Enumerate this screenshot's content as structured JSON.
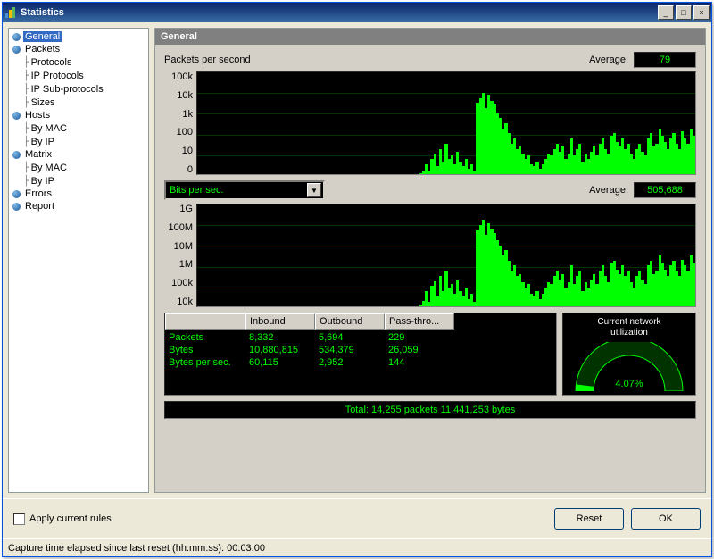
{
  "window": {
    "title": "Statistics"
  },
  "tree": [
    {
      "label": "General",
      "indent": 0,
      "bullet": true,
      "selected": true
    },
    {
      "label": "Packets",
      "indent": 0,
      "bullet": true
    },
    {
      "label": "Protocols",
      "indent": 1,
      "bullet": false
    },
    {
      "label": "IP Protocols",
      "indent": 1,
      "bullet": false
    },
    {
      "label": "IP Sub-protocols",
      "indent": 1,
      "bullet": false
    },
    {
      "label": "Sizes",
      "indent": 1,
      "bullet": false
    },
    {
      "label": "Hosts",
      "indent": 0,
      "bullet": true
    },
    {
      "label": "By MAC",
      "indent": 1,
      "bullet": false
    },
    {
      "label": "By IP",
      "indent": 1,
      "bullet": false
    },
    {
      "label": "Matrix",
      "indent": 0,
      "bullet": true
    },
    {
      "label": "By MAC",
      "indent": 1,
      "bullet": false
    },
    {
      "label": "By IP",
      "indent": 1,
      "bullet": false
    },
    {
      "label": "Errors",
      "indent": 0,
      "bullet": true
    },
    {
      "label": "Report",
      "indent": 0,
      "bullet": true
    }
  ],
  "panel": {
    "header": "General"
  },
  "chart1": {
    "title": "Packets per second",
    "avg_label": "Average:",
    "avg_value": "79",
    "yticks": [
      "100k",
      "10k",
      "1k",
      "100",
      "10",
      "0"
    ],
    "height": 116,
    "data": [
      0,
      0,
      0,
      0,
      0,
      0,
      0,
      0,
      0,
      0,
      0,
      0,
      0,
      0,
      0,
      0,
      0,
      0,
      0,
      0,
      0,
      0,
      0,
      0,
      0,
      0,
      0,
      0,
      0,
      0,
      0,
      0,
      0,
      0,
      0,
      0,
      0,
      0,
      0,
      0,
      0,
      0,
      0,
      0,
      0,
      0,
      0,
      0,
      0,
      0,
      0,
      0,
      0,
      0,
      0,
      0,
      0,
      0,
      0,
      0,
      0,
      0,
      0,
      0,
      0,
      0,
      0,
      0,
      0,
      0,
      0,
      0,
      0,
      0,
      0,
      0,
      0,
      0,
      1,
      3,
      10,
      3,
      15,
      20,
      8,
      25,
      12,
      30,
      15,
      18,
      10,
      22,
      12,
      8,
      15,
      5,
      10,
      3,
      70,
      75,
      80,
      65,
      78,
      72,
      68,
      60,
      55,
      45,
      50,
      40,
      30,
      35,
      25,
      28,
      20,
      15,
      18,
      10,
      8,
      12,
      5,
      10,
      15,
      20,
      18,
      25,
      30,
      22,
      28,
      15,
      20,
      35,
      18,
      25,
      30,
      12,
      20,
      15,
      22,
      28,
      18,
      30,
      35,
      25,
      20,
      38,
      40,
      32,
      28,
      35,
      25,
      30,
      20,
      15,
      25,
      30,
      22,
      18,
      35,
      40,
      28,
      30,
      45,
      38,
      32,
      25,
      35,
      40,
      30,
      25,
      42,
      35,
      30,
      45,
      38
    ]
  },
  "chart2": {
    "dropdown": "Bits per sec.",
    "avg_label": "Average:",
    "avg_value": "505,688",
    "yticks": [
      "1G",
      "100M",
      "10M",
      "1M",
      "100k",
      "10k"
    ],
    "height": 116,
    "data": [
      0,
      0,
      0,
      0,
      0,
      0,
      0,
      0,
      0,
      0,
      0,
      0,
      0,
      0,
      0,
      0,
      0,
      0,
      0,
      0,
      0,
      0,
      0,
      0,
      0,
      0,
      0,
      0,
      0,
      0,
      0,
      0,
      0,
      0,
      0,
      0,
      0,
      0,
      0,
      0,
      0,
      0,
      0,
      0,
      0,
      0,
      0,
      0,
      0,
      0,
      0,
      0,
      0,
      0,
      0,
      0,
      0,
      0,
      0,
      0,
      0,
      0,
      0,
      0,
      0,
      0,
      0,
      0,
      0,
      0,
      0,
      0,
      0,
      0,
      0,
      0,
      0,
      0,
      2,
      5,
      15,
      4,
      20,
      25,
      10,
      30,
      15,
      35,
      18,
      22,
      12,
      26,
      15,
      10,
      18,
      7,
      12,
      4,
      75,
      80,
      85,
      70,
      82,
      76,
      72,
      65,
      60,
      50,
      55,
      45,
      35,
      40,
      30,
      32,
      24,
      18,
      22,
      12,
      10,
      15,
      7,
      12,
      18,
      24,
      22,
      30,
      35,
      26,
      32,
      18,
      24,
      40,
      22,
      30,
      35,
      15,
      24,
      18,
      26,
      32,
      22,
      35,
      40,
      30,
      24,
      42,
      45,
      36,
      32,
      40,
      30,
      35,
      24,
      18,
      30,
      35,
      26,
      22,
      40,
      45,
      32,
      35,
      50,
      42,
      36,
      30,
      40,
      45,
      35,
      30,
      46,
      40,
      35,
      50,
      42
    ]
  },
  "stats": {
    "headers": [
      "",
      "Inbound",
      "Outbound",
      "Pass-thro..."
    ],
    "rows": [
      {
        "label": "Packets",
        "vals": [
          "8,332",
          "5,694",
          "229"
        ]
      },
      {
        "label": "Bytes",
        "vals": [
          "10,880,815",
          "534,379",
          "26,059"
        ]
      },
      {
        "label": "Bytes per sec.",
        "vals": [
          "60,115",
          "2,952",
          "144"
        ]
      }
    ]
  },
  "gauge": {
    "title1": "Current network",
    "title2": "utilization",
    "value": "4.07%",
    "percent": 4.07
  },
  "total": "Total: 14,255 packets 11,441,253 bytes",
  "bottom": {
    "checkbox": "Apply current rules",
    "reset": "Reset",
    "ok": "OK"
  },
  "status": "Capture time elapsed since last reset (hh:mm:ss): 00:03:00",
  "colors": {
    "bar": "#00ff00",
    "text_green": "#00ff00",
    "chart_bg": "#000000"
  }
}
